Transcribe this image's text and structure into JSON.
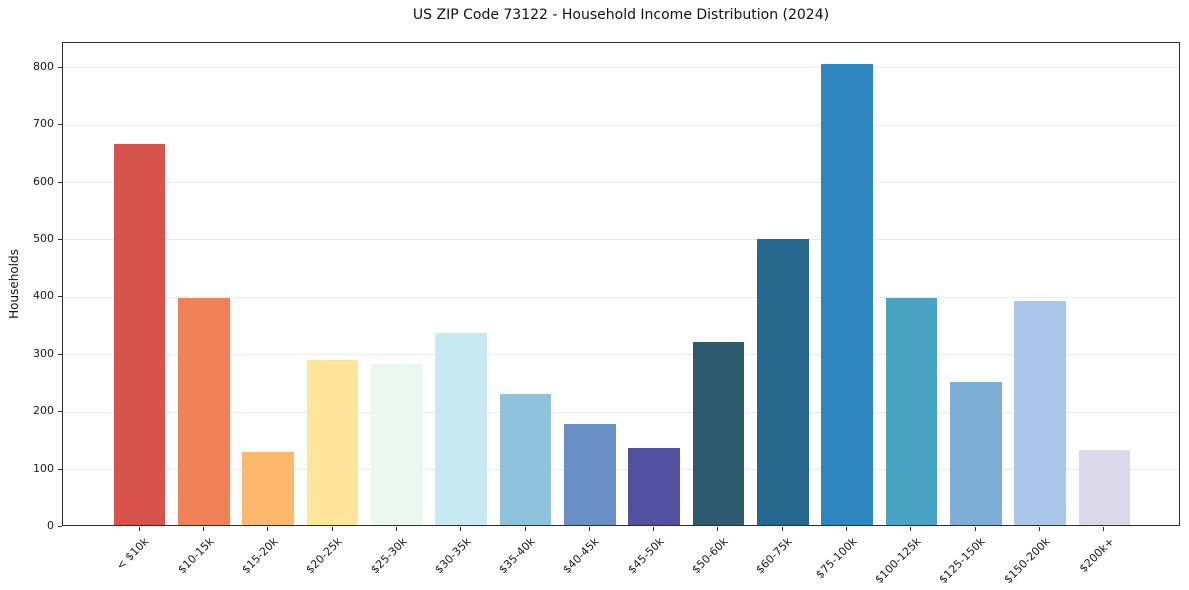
{
  "figure": {
    "background": "#ffffff"
  },
  "chart_data": {
    "type": "bar",
    "title": "US ZIP Code 73122 - Household Income Distribution (2024)",
    "xlabel": "",
    "ylabel": "Households",
    "categories": [
      "< $10k",
      "$10-15k",
      "$15-20k",
      "$20-25k",
      "$25-30k",
      "$30-35k",
      "$35-40k",
      "$40-45k",
      "$45-50k",
      "$50-60k",
      "$60-75k",
      "$75-100k",
      "$100-125k",
      "$125-150k",
      "$150-200k",
      "$200k+"
    ],
    "values": [
      663,
      396,
      127,
      287,
      280,
      335,
      228,
      176,
      135,
      318,
      499,
      803,
      396,
      249,
      391,
      131
    ],
    "bar_colors": [
      "#d6524b",
      "#f08159",
      "#fcb96e",
      "#fee59a",
      "#ecf7f1",
      "#c7e9f1",
      "#8fc3dc",
      "#6a8ec6",
      "#53509f",
      "#2e5a70",
      "#27688e",
      "#2d86c0",
      "#4ba3c3",
      "#7eaed5",
      "#a9c5e7",
      "#dbd9e9"
    ],
    "yticks": [
      0,
      100,
      200,
      300,
      400,
      500,
      600,
      700,
      800
    ],
    "ylim": [
      0,
      843
    ],
    "grid": "horizontal-light",
    "gridline_color": "#e9e9e9",
    "legend": "none",
    "x_tick_label_rotation_deg": 45
  }
}
